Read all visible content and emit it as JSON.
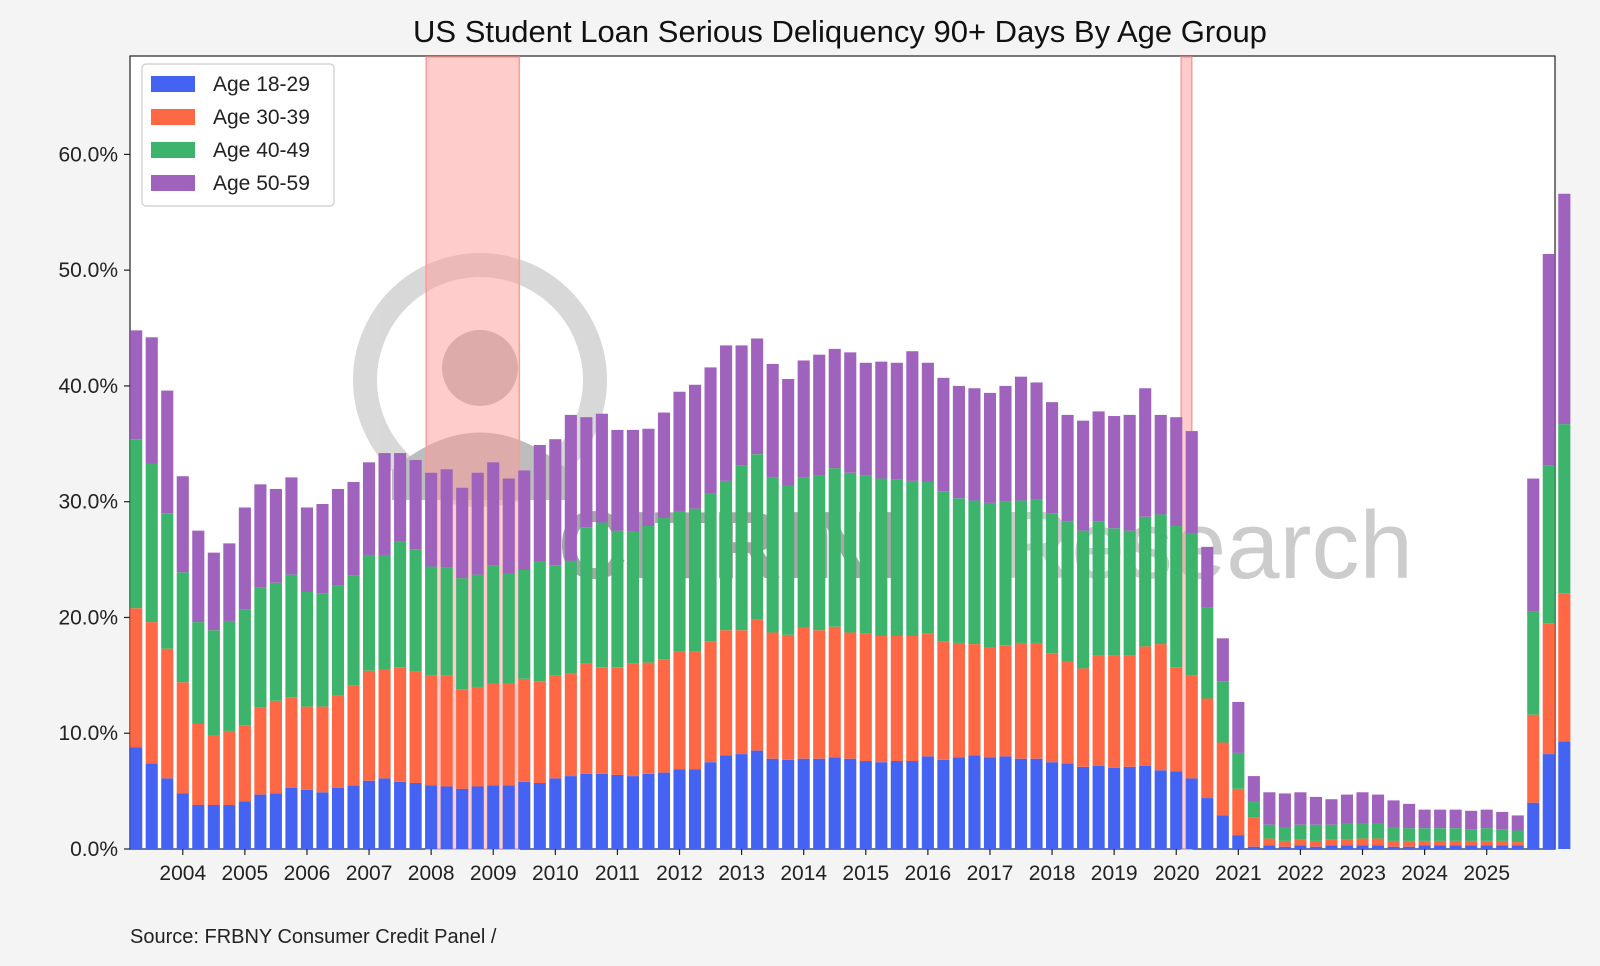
{
  "chart_data": {
    "type": "bar",
    "stacked": true,
    "title": "US Student Loan Serious Deliquency 90+ Days By Age Group",
    "source": "Source: FRBNY Consumer Credit Panel /",
    "ylim": [
      0,
      68.5
    ],
    "yticks": [
      0,
      10,
      20,
      30,
      40,
      50,
      60
    ],
    "ytick_labels": [
      "0.0%",
      "10.0%",
      "20.0%",
      "30.0%",
      "40.0%",
      "50.0%",
      "60.0%"
    ],
    "x_start": 2003.25,
    "x_step": 0.25,
    "xlim": [
      2003.15,
      2026.1
    ],
    "xticks": [
      2004,
      2005,
      2006,
      2007,
      2008,
      2009,
      2010,
      2011,
      2012,
      2013,
      2014,
      2015,
      2016,
      2017,
      2018,
      2019,
      2020,
      2021,
      2022,
      2023,
      2024,
      2025
    ],
    "xtick_labels": [
      "2004",
      "2005",
      "2006",
      "2007",
      "2008",
      "2009",
      "2010",
      "2011",
      "2012",
      "2013",
      "2014",
      "2015",
      "2016",
      "2017",
      "2018",
      "2019",
      "2020",
      "2021",
      "2022",
      "2023",
      "2024",
      "2025"
    ],
    "legend_position": "top-left",
    "grid": false,
    "recessions": [
      [
        2007.92,
        2009.42
      ],
      [
        2020.08,
        2020.25
      ]
    ],
    "recession_color": "#ff9a9a",
    "watermark": {
      "brand": "CITRINI",
      "suffix": "Research"
    },
    "series": [
      {
        "name": "Age 18-29",
        "color": "#4563f2",
        "values": [
          8.8,
          7.4,
          6.1,
          4.8,
          3.8,
          3.8,
          3.8,
          4.1,
          4.7,
          4.8,
          5.3,
          5.1,
          4.9,
          5.3,
          5.5,
          5.9,
          6.1,
          5.8,
          5.7,
          5.5,
          5.4,
          5.2,
          5.4,
          5.5,
          5.5,
          5.8,
          5.7,
          6.1,
          6.3,
          6.5,
          6.5,
          6.4,
          6.3,
          6.5,
          6.6,
          6.9,
          6.9,
          7.5,
          8.1,
          8.2,
          8.5,
          7.8,
          7.7,
          7.8,
          7.8,
          7.9,
          7.8,
          7.6,
          7.5,
          7.6,
          7.6,
          8.0,
          7.7,
          7.9,
          8.1,
          7.9,
          8.0,
          7.8,
          7.8,
          7.5,
          7.4,
          7.1,
          7.2,
          7.0,
          7.1,
          7.2,
          6.8,
          6.7,
          6.1,
          4.4,
          2.9,
          1.2,
          0.2,
          0.3,
          0.2,
          0.3,
          0.2,
          0.3,
          0.3,
          0.3,
          0.3,
          0.2,
          0.2,
          0.3,
          0.3,
          0.3,
          0.3,
          0.3,
          0.3,
          0.3,
          4.0,
          8.2,
          9.3
        ]
      },
      {
        "name": "Age 30-39",
        "color": "#ff6845",
        "values": [
          12.0,
          12.2,
          11.2,
          9.6,
          7.0,
          6.0,
          6.4,
          6.6,
          7.5,
          8.0,
          7.8,
          7.2,
          7.4,
          8.0,
          8.6,
          9.5,
          9.4,
          9.9,
          9.6,
          9.5,
          9.6,
          8.6,
          8.6,
          8.8,
          8.8,
          8.9,
          8.8,
          8.9,
          8.9,
          9.5,
          9.2,
          9.3,
          9.7,
          9.6,
          9.8,
          10.2,
          10.2,
          10.4,
          10.8,
          10.7,
          11.3,
          10.9,
          10.8,
          11.3,
          11.1,
          11.3,
          10.9,
          11.0,
          10.9,
          10.8,
          10.8,
          10.6,
          10.2,
          9.9,
          9.6,
          9.5,
          9.6,
          10.0,
          10.0,
          9.4,
          8.8,
          8.5,
          9.5,
          9.7,
          9.6,
          10.3,
          10.9,
          9.0,
          8.9,
          8.6,
          6.3,
          4.0,
          2.5,
          0.6,
          0.5,
          0.5,
          0.5,
          0.5,
          0.5,
          0.6,
          0.6,
          0.5,
          0.5,
          0.4,
          0.4,
          0.4,
          0.4,
          0.4,
          0.4,
          0.3,
          7.6,
          11.3,
          12.8
        ]
      },
      {
        "name": "Age 40-49",
        "color": "#3db46c",
        "values": [
          14.6,
          13.7,
          11.7,
          9.5,
          8.8,
          9.1,
          9.5,
          10.0,
          10.4,
          10.2,
          10.6,
          9.9,
          9.8,
          9.5,
          9.5,
          10.0,
          9.9,
          10.9,
          10.6,
          9.4,
          9.3,
          9.6,
          9.7,
          10.2,
          9.5,
          9.4,
          10.3,
          9.5,
          9.7,
          11.8,
          12.5,
          11.8,
          11.4,
          11.8,
          12.2,
          12.1,
          12.3,
          12.8,
          12.9,
          14.2,
          14.3,
          13.4,
          12.9,
          13.0,
          13.4,
          13.7,
          13.8,
          13.7,
          13.6,
          13.5,
          13.4,
          13.1,
          13.0,
          12.5,
          12.4,
          12.5,
          12.4,
          12.3,
          12.4,
          12.1,
          12.1,
          11.9,
          11.6,
          11.0,
          10.8,
          11.2,
          11.2,
          12.2,
          12.3,
          7.9,
          5.3,
          3.1,
          1.4,
          1.2,
          1.2,
          1.3,
          1.4,
          1.3,
          1.4,
          1.3,
          1.3,
          1.2,
          1.1,
          1.1,
          1.1,
          1.1,
          1.0,
          1.1,
          1.0,
          1.0,
          8.9,
          13.6,
          14.6
        ]
      },
      {
        "name": "Age 50-59",
        "color": "#9f62bd",
        "values": [
          9.4,
          10.9,
          10.6,
          8.3,
          7.9,
          6.7,
          6.7,
          8.8,
          8.9,
          8.1,
          8.4,
          7.3,
          7.7,
          8.3,
          8.1,
          8.0,
          8.8,
          7.6,
          7.7,
          8.1,
          8.5,
          7.8,
          8.8,
          8.9,
          8.2,
          8.6,
          10.1,
          10.9,
          12.6,
          9.5,
          9.4,
          8.7,
          8.8,
          8.4,
          9.1,
          10.3,
          10.7,
          10.9,
          11.7,
          10.4,
          10.0,
          9.8,
          9.2,
          10.1,
          10.4,
          10.3,
          10.4,
          9.7,
          10.1,
          10.1,
          11.2,
          10.3,
          9.8,
          9.7,
          9.7,
          9.5,
          10.0,
          10.7,
          10.1,
          9.6,
          9.2,
          9.5,
          9.5,
          9.7,
          10.0,
          11.1,
          8.6,
          9.4,
          8.8,
          5.2,
          3.7,
          4.4,
          2.2,
          2.8,
          2.9,
          2.8,
          2.4,
          2.2,
          2.5,
          2.7,
          2.5,
          2.3,
          2.1,
          1.6,
          1.6,
          1.6,
          1.6,
          1.6,
          1.5,
          1.3,
          11.5,
          18.3,
          19.9
        ]
      }
    ]
  }
}
